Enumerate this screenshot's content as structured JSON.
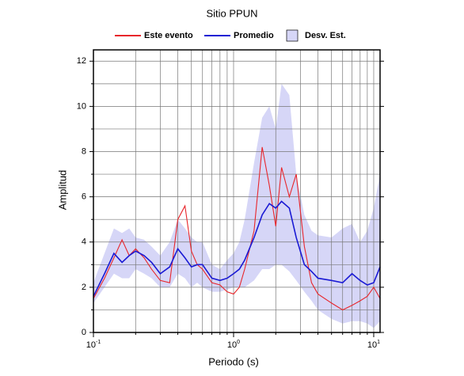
{
  "chart_data": {
    "type": "line",
    "title": "Sitio PPUN",
    "xlabel": "Periodo (s)",
    "ylabel": "Amplitud",
    "log_x": true,
    "grid": true,
    "xlim": [
      0.1,
      11.1
    ],
    "ylim": [
      0,
      12.5
    ],
    "xticks": [
      {
        "value": 0.1,
        "label": "10",
        "exponent": "-1"
      },
      {
        "value": 1,
        "label": "10",
        "exponent": "0"
      },
      {
        "value": 10,
        "label": "10",
        "exponent": "1"
      }
    ],
    "xminor": [
      0.2,
      0.3,
      0.4,
      0.5,
      0.6,
      0.7,
      0.8,
      0.9,
      2,
      3,
      4,
      5,
      6,
      7,
      8,
      9
    ],
    "yticks": [
      0,
      2,
      4,
      6,
      8,
      10,
      12
    ],
    "yminor": [
      1,
      3,
      5,
      7,
      9,
      11
    ],
    "x": [
      0.1,
      0.12,
      0.14,
      0.16,
      0.18,
      0.2,
      0.23,
      0.26,
      0.3,
      0.35,
      0.4,
      0.45,
      0.5,
      0.55,
      0.6,
      0.7,
      0.8,
      0.9,
      1.0,
      1.1,
      1.2,
      1.4,
      1.6,
      1.8,
      2.0,
      2.2,
      2.5,
      2.8,
      3.2,
      3.6,
      4,
      5,
      6,
      7,
      8,
      9,
      10,
      11.1
    ],
    "band": {
      "name": "Desv. Est.",
      "color": "#d6d6f7",
      "upper": [
        2.2,
        3.5,
        4.6,
        4.4,
        4.6,
        4.2,
        4.1,
        3.8,
        3.4,
        4.0,
        5.0,
        4.6,
        4.2,
        4.0,
        4.0,
        3.0,
        2.8,
        3.2,
        3.5,
        4.0,
        5.0,
        7.5,
        9.5,
        10.0,
        9.0,
        11.0,
        10.5,
        7.0,
        5.2,
        4.5,
        4.3,
        4.2,
        4.6,
        4.8,
        4.0,
        4.5,
        5.5,
        7.0
      ],
      "lower": [
        1.3,
        2.0,
        2.6,
        2.4,
        2.4,
        2.8,
        2.6,
        2.4,
        2.0,
        2.0,
        2.6,
        2.4,
        2.0,
        2.2,
        2.0,
        1.8,
        1.8,
        1.9,
        2.0,
        2.0,
        2.0,
        2.3,
        2.8,
        2.8,
        3.0,
        3.0,
        2.7,
        2.3,
        1.8,
        1.4,
        1.0,
        0.6,
        0.4,
        0.5,
        0.5,
        0.4,
        0.2,
        0.5
      ]
    },
    "series": [
      {
        "name": "Este evento",
        "color": "#e8262b",
        "values": [
          1.5,
          2.4,
          3.3,
          4.1,
          3.4,
          3.7,
          3.3,
          2.8,
          2.3,
          2.2,
          5.0,
          5.6,
          3.6,
          3.0,
          2.8,
          2.2,
          2.1,
          1.8,
          1.7,
          2.0,
          2.8,
          4.5,
          8.2,
          6.5,
          4.7,
          7.3,
          6.0,
          7.0,
          3.8,
          2.2,
          1.7,
          1.3,
          1.0,
          1.2,
          1.4,
          1.6,
          2.0,
          1.5
        ]
      },
      {
        "name": "Promedio",
        "color": "#1a1ad4",
        "values": [
          1.6,
          2.6,
          3.5,
          3.1,
          3.4,
          3.6,
          3.4,
          3.1,
          2.6,
          2.9,
          3.7,
          3.3,
          2.9,
          3.0,
          3.0,
          2.4,
          2.3,
          2.4,
          2.6,
          2.8,
          3.2,
          4.2,
          5.2,
          5.7,
          5.5,
          5.8,
          5.5,
          4.2,
          3.0,
          2.7,
          2.4,
          2.3,
          2.2,
          2.6,
          2.3,
          2.1,
          2.2,
          2.9
        ]
      }
    ]
  }
}
